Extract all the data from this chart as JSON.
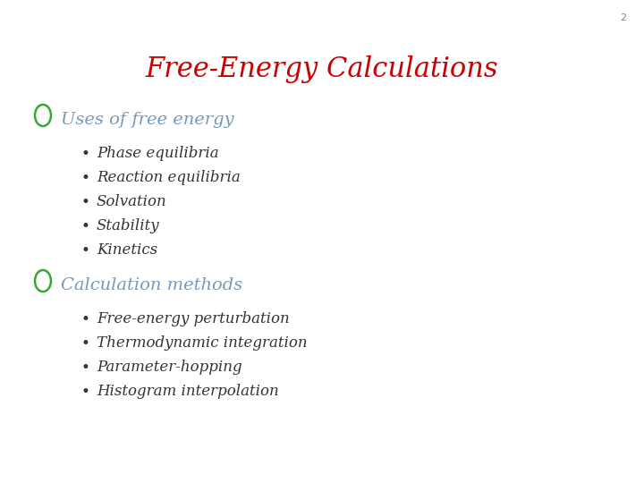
{
  "title": "Free-Energy Calculations",
  "title_color": "#cc0000",
  "title_fontsize": 22,
  "slide_number": "2",
  "background_color": "#ffffff",
  "section_color": "#7799bb",
  "section_bullet_color": "#33aa33",
  "bullet_color": "#333333",
  "section_fontsize": 14,
  "bullet_fontsize": 12,
  "sections": [
    {
      "header": "Uses of free energy",
      "bullets": [
        "Phase equilibria",
        "Reaction equilibria",
        "Solvation",
        "Stability",
        "Kinetics"
      ]
    },
    {
      "header": "Calculation methods",
      "bullets": [
        "Free-energy perturbation",
        "Thermodynamic integration",
        "Parameter-hopping",
        "Histogram interpolation"
      ]
    }
  ]
}
